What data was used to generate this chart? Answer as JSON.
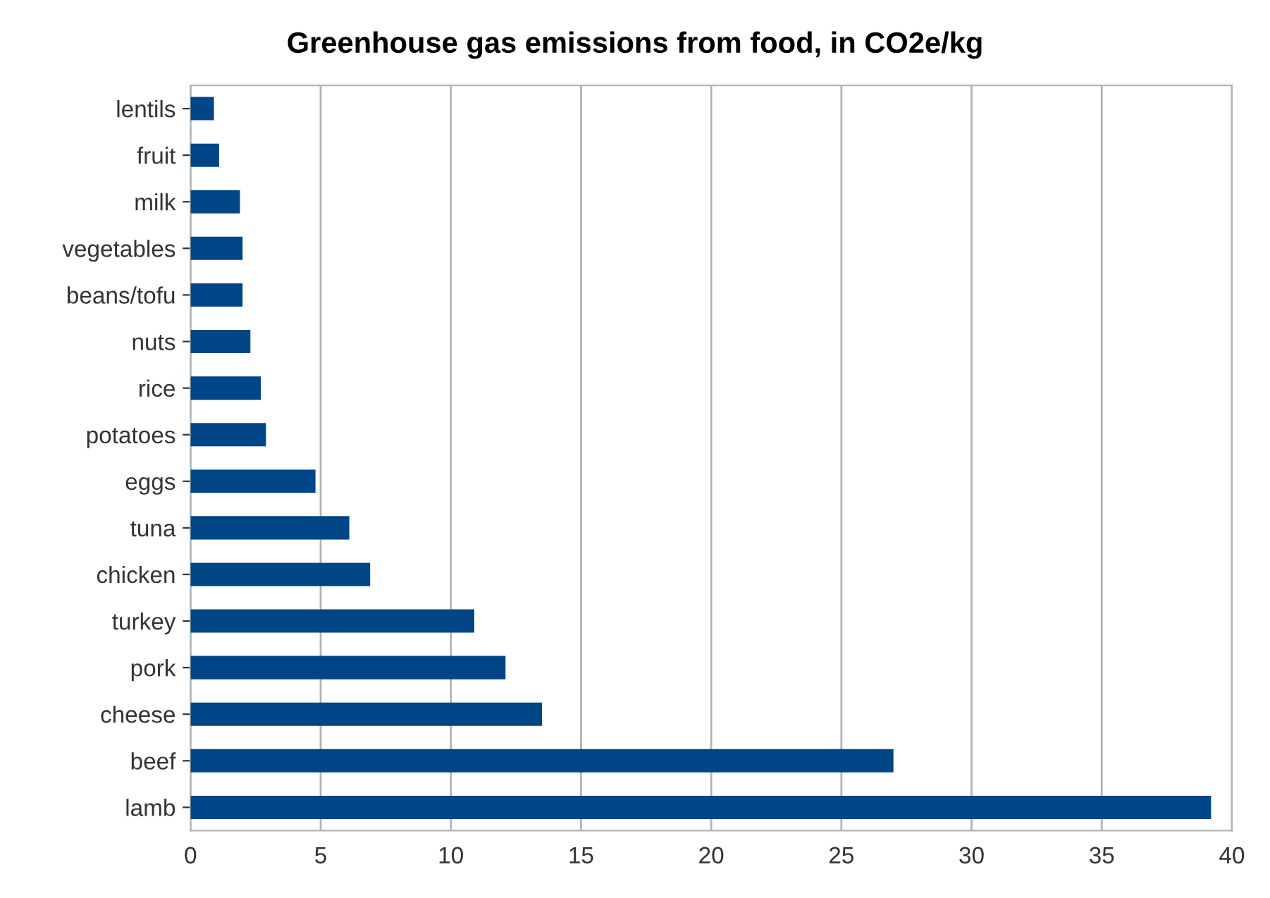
{
  "chart_data": {
    "type": "bar",
    "orientation": "horizontal",
    "title": "Greenhouse gas emissions from food, in CO2e/kg",
    "categories": [
      "lentils",
      "fruit",
      "milk",
      "vegetables",
      "beans/tofu",
      "nuts",
      "rice",
      "potatoes",
      "eggs",
      "tuna",
      "chicken",
      "turkey",
      "pork",
      "cheese",
      "beef",
      "lamb"
    ],
    "values": [
      0.9,
      1.1,
      1.9,
      2.0,
      2.0,
      2.3,
      2.7,
      2.9,
      4.8,
      6.1,
      6.9,
      10.9,
      12.1,
      13.5,
      27.0,
      39.2
    ],
    "color": "#004586",
    "xlim": [
      0,
      40
    ],
    "xticks": [
      0,
      5,
      10,
      15,
      20,
      25,
      30,
      35,
      40
    ],
    "grid": "x",
    "legend": false
  }
}
